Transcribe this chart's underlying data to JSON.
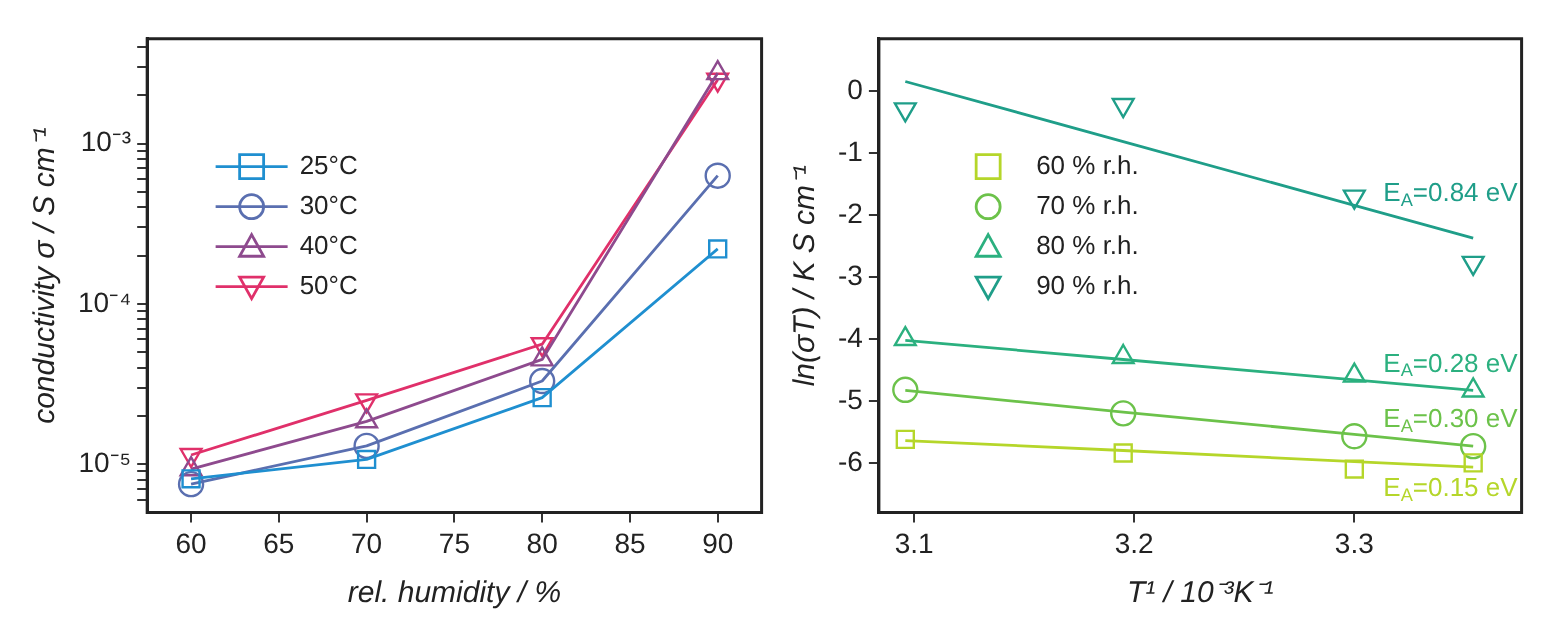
{
  "chart_data": [
    {
      "type": "line",
      "xlabel": "rel. humidity / %",
      "ylabel": "conductivity σ / S cm⁻¹",
      "log": "y",
      "grid": false,
      "legend": "top left",
      "x": [
        60,
        70,
        80,
        90
      ],
      "xlim": [
        57.5,
        92.5
      ],
      "xticks": [
        60,
        65,
        70,
        75,
        80,
        85,
        90
      ],
      "ylim": [
        5e-06,
        0.0045
      ],
      "yticks": [
        {
          "value": 6e-06,
          "label": null
        },
        {
          "value": 7e-06,
          "label": null
        },
        {
          "value": 8e-06,
          "label": null
        },
        {
          "value": 9e-06,
          "label": null
        },
        {
          "value": 1e-05,
          "label": "10⁻⁵"
        },
        {
          "value": 2e-05,
          "label": null
        },
        {
          "value": 3e-05,
          "label": null
        },
        {
          "value": 4e-05,
          "label": null
        },
        {
          "value": 5e-05,
          "label": null
        },
        {
          "value": 6e-05,
          "label": null
        },
        {
          "value": 7e-05,
          "label": null
        },
        {
          "value": 8e-05,
          "label": null
        },
        {
          "value": 9e-05,
          "label": null
        },
        {
          "value": 0.0001,
          "label": "10⁻⁴"
        },
        {
          "value": 0.0002,
          "label": null
        },
        {
          "value": 0.0003,
          "label": null
        },
        {
          "value": 0.0004,
          "label": null
        },
        {
          "value": 0.0005,
          "label": null
        },
        {
          "value": 0.0006,
          "label": null
        },
        {
          "value": 0.0007,
          "label": null
        },
        {
          "value": 0.0008,
          "label": null
        },
        {
          "value": 0.0009,
          "label": null
        },
        {
          "value": 0.001,
          "label": "10⁻³"
        },
        {
          "value": 0.002,
          "label": null
        },
        {
          "value": 0.003,
          "label": null
        },
        {
          "value": 0.004,
          "label": null
        }
      ],
      "series": [
        {
          "name": "25°C",
          "color": "#1f8fd0",
          "marker": "square",
          "values": [
            8.1e-06,
            1.07e-05,
            2.6e-05,
            0.00022
          ]
        },
        {
          "name": "30°C",
          "color": "#5a6fb0",
          "marker": "circle",
          "values": [
            7.5e-06,
            1.3e-05,
            3.3e-05,
            0.00063
          ]
        },
        {
          "name": "40°C",
          "color": "#8e4a8e",
          "marker": "triangle",
          "values": [
            9.3e-06,
            1.85e-05,
            4.5e-05,
            0.00275
          ]
        },
        {
          "name": "50°C",
          "color": "#e0306a",
          "marker": "triangle_down",
          "values": [
            1.14e-05,
            2.5e-05,
            5.6e-05,
            0.0025
          ]
        }
      ]
    },
    {
      "type": "scatter",
      "xlabel": "T¹ / 10⁻³K⁻¹",
      "ylabel": "ln(σT) / K S cm⁻¹",
      "grid": false,
      "legend": "top left",
      "x": [
        3.096,
        3.195,
        3.3,
        3.354
      ],
      "xlim": [
        3.084,
        3.376
      ],
      "xticks": [
        3.1,
        3.2,
        3.3
      ],
      "ylim": [
        -6.8,
        0.85
      ],
      "yticks": [
        -6,
        -5,
        -4,
        -3,
        -2,
        -1,
        0
      ],
      "series": [
        {
          "name": "60 % r.h.",
          "color": "#b5d62a",
          "marker": "square",
          "values": [
            -5.62,
            -5.84,
            -6.1,
            -6.0
          ]
        },
        {
          "name": "70 % r.h.",
          "color": "#6cc24a",
          "marker": "circle",
          "values": [
            -4.82,
            -5.2,
            -5.57,
            -5.73
          ]
        },
        {
          "name": "80 % r.h.",
          "color": "#2bb07f",
          "marker": "triangle",
          "values": [
            -4.0,
            -4.29,
            -4.59,
            -4.83
          ]
        },
        {
          "name": "90 % r.h.",
          "color": "#1f9e89",
          "marker": "triangle_down",
          "values": [
            -0.29,
            -0.22,
            -1.7,
            -2.77
          ]
        },
        {
          "type": "line",
          "color": "#1f9e89",
          "marker": "none",
          "values": [
            0.16,
            -0.81,
            -1.84,
            -2.37
          ]
        },
        {
          "type": "line",
          "color": "#2bb07f",
          "marker": "none",
          "values": [
            -4.02,
            -4.33,
            -4.66,
            -4.83
          ]
        },
        {
          "type": "line",
          "color": "#6cc24a",
          "marker": "none",
          "values": [
            -4.83,
            -5.18,
            -5.54,
            -5.73
          ]
        },
        {
          "type": "line",
          "color": "#b5d62a",
          "marker": "none",
          "values": [
            -5.64,
            -5.8,
            -5.98,
            -6.07
          ]
        }
      ],
      "annotations": [
        "E$_{A}$=0.84 eV",
        "E$_{A}$=0.28 eV",
        "E$_{A}$=0.30 eV",
        "E$_{A}$=0.15 eV"
      ]
    }
  ]
}
